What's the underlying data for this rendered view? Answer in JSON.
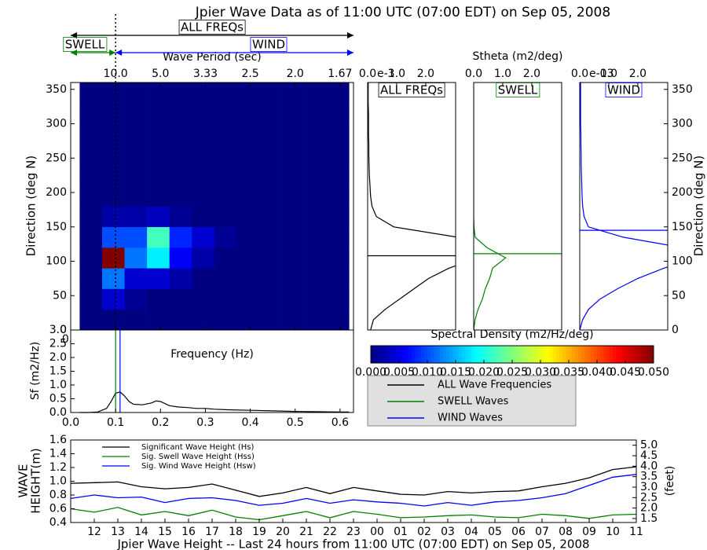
{
  "chart_data": [
    {
      "type": "heatmap",
      "title": "Jpier Wave Data as of 11:00 UTC (07:00 EDT) on Sep 05, 2008",
      "xlabel": "Frequency (Hz)",
      "ylabel": "Direction (deg N)",
      "top_xlabel": "Wave Period (sec)",
      "xlim": [
        0,
        0.63
      ],
      "xticks": [
        {
          "value": 0,
          "label": "0.0"
        },
        0.1,
        0.2,
        0.3,
        0.4,
        0.5,
        0.6
      ],
      "top_xticks": [
        {
          "value": 0.1,
          "label": "10.0"
        },
        {
          "value": 0.2,
          "label": "5.0"
        },
        {
          "value": 0.3,
          "label": "3.33"
        },
        {
          "value": 0.4,
          "label": "2.5"
        },
        {
          "value": 0.5,
          "label": "2.0"
        },
        {
          "value": 0.6,
          "label": "1.67"
        }
      ],
      "ylim": [
        0,
        360
      ],
      "yticks": [
        0,
        50,
        100,
        150,
        200,
        250,
        300,
        350
      ],
      "x_edges": [
        0.02,
        0.07,
        0.12,
        0.17,
        0.22,
        0.27,
        0.32,
        0.37,
        0.42,
        0.47,
        0.52,
        0.57,
        0.62
      ],
      "y_edges": [
        0,
        30,
        60,
        90,
        120,
        150,
        180,
        210,
        240,
        270,
        300,
        330,
        360
      ],
      "values": [
        [
          0,
          0,
          0,
          0,
          0,
          0,
          0,
          0,
          0,
          0,
          0,
          0
        ],
        [
          0,
          0.004,
          0.001,
          0,
          0,
          0,
          0,
          0,
          0,
          0,
          0,
          0
        ],
        [
          0,
          0.012,
          0.004,
          0.004,
          0.002,
          0,
          0,
          0,
          0,
          0,
          0,
          0
        ],
        [
          0,
          0.05,
          0.012,
          0.018,
          0.006,
          0.002,
          0,
          0,
          0,
          0,
          0,
          0
        ],
        [
          0,
          0.01,
          0.01,
          0.022,
          0.008,
          0.004,
          0.001,
          0,
          0,
          0,
          0,
          0
        ],
        [
          0,
          0.002,
          0.002,
          0.003,
          0.001,
          0,
          0,
          0,
          0,
          0,
          0,
          0
        ],
        [
          0,
          0,
          0,
          0,
          0,
          0,
          0,
          0,
          0,
          0,
          0,
          0
        ],
        [
          0,
          0,
          0,
          0,
          0,
          0,
          0,
          0,
          0,
          0,
          0,
          0
        ],
        [
          0,
          0,
          0,
          0,
          0,
          0,
          0,
          0,
          0,
          0,
          0,
          0
        ],
        [
          0,
          0,
          0,
          0,
          0,
          0,
          0,
          0,
          0,
          0,
          0,
          0
        ],
        [
          0,
          0,
          0,
          0,
          0,
          0,
          0,
          0,
          0,
          0,
          0,
          0
        ],
        [
          0,
          0,
          0,
          0,
          0,
          0,
          0,
          0,
          0,
          0,
          0,
          0
        ]
      ],
      "colorbar": {
        "label": "Spectral Density (m2/Hz/deg)",
        "lim": [
          0,
          0.05
        ],
        "ticks": [
          {
            "value": 0,
            "label": "0.000"
          },
          0.005,
          {
            "value": 0.01,
            "label": "0.010"
          },
          0.015,
          {
            "value": 0.02,
            "label": "0.020"
          },
          0.025,
          {
            "value": 0.03,
            "label": "0.030"
          },
          0.035,
          {
            "value": 0.04,
            "label": "0.040"
          },
          0.045,
          {
            "value": 0.05,
            "label": "0.050"
          }
        ]
      },
      "separation_frequency": 0.1,
      "annotations": [
        {
          "text": "ALL FREQs",
          "color": "#000000"
        },
        {
          "text": "SWELL",
          "color": "#008000"
        },
        {
          "text": "WIND",
          "color": "#0000ff"
        }
      ]
    },
    {
      "type": "profile",
      "title": "ALL FREQs",
      "color": "#000000",
      "xlim": [
        0,
        3.03
      ],
      "xticks": [
        {
          "value": 0,
          "label": "0.0"
        },
        {
          "value": 1,
          "label": "1.0"
        },
        {
          "value": 2,
          "label": "2.0"
        }
      ],
      "x_offset_label": "e-3",
      "ylim": [
        0,
        360
      ],
      "directions": [
        0,
        15,
        30,
        45,
        60,
        75,
        90,
        105,
        120,
        135,
        150,
        165,
        180,
        195,
        210,
        225,
        240,
        255,
        270,
        285,
        300,
        315,
        330,
        345,
        360
      ],
      "values": [
        0.1,
        0.2,
        0.6,
        1.1,
        1.6,
        2.1,
        2.8,
        3.8,
        3.5,
        3.1,
        0.9,
        0.3,
        0.15,
        0.1,
        0.08,
        0.06,
        0.05,
        0.04,
        0.04,
        0.03,
        0.03,
        0.03,
        0.02,
        0.02,
        0.02
      ],
      "mean_direction": 108
    },
    {
      "type": "profile",
      "title": "SWELL",
      "xlabel": "Stheta (m2/deg)",
      "color": "#008000",
      "xlim": [
        0,
        3.03
      ],
      "xticks": [
        {
          "value": 0,
          "label": "0.0"
        },
        {
          "value": 1,
          "label": "1.0"
        },
        {
          "value": 2,
          "label": "2.0"
        }
      ],
      "ylim": [
        0,
        360
      ],
      "directions": [
        0,
        15,
        30,
        45,
        60,
        75,
        90,
        105,
        120,
        135,
        150,
        165,
        180,
        195,
        210,
        225,
        240,
        255,
        270,
        285,
        300,
        315,
        330,
        345,
        360
      ],
      "values": [
        0,
        0.05,
        0.15,
        0.3,
        0.4,
        0.55,
        0.65,
        1.1,
        0.45,
        0.05,
        0.01,
        0,
        0,
        0,
        0,
        0,
        0,
        0,
        0,
        0,
        0,
        0,
        0,
        0,
        0
      ],
      "mean_direction": 111
    },
    {
      "type": "profile",
      "title": "WIND",
      "ylabel": "Direction (deg N)",
      "color": "#0000ff",
      "xlim": [
        0,
        3.03
      ],
      "xticks": [
        {
          "value": 0,
          "label": "0.0"
        },
        {
          "value": 1,
          "label": "1.0"
        },
        {
          "value": 2,
          "label": "2.0"
        }
      ],
      "x_offset_label": "e-03",
      "ylim": [
        0,
        360
      ],
      "yticks": [
        0,
        50,
        100,
        150,
        200,
        250,
        300,
        350
      ],
      "directions": [
        0,
        15,
        30,
        45,
        60,
        75,
        90,
        105,
        120,
        135,
        150,
        165,
        180,
        195,
        210,
        225,
        240,
        255,
        270,
        285,
        300,
        315,
        330,
        345,
        360
      ],
      "values": [
        0,
        0.1,
        0.3,
        0.7,
        1.3,
        2.0,
        2.9,
        4.0,
        3.5,
        1.5,
        0.3,
        0.15,
        0.1,
        0.08,
        0.07,
        0.06,
        0.05,
        0.05,
        0.04,
        0.04,
        0.03,
        0.03,
        0.03,
        0.03,
        0.03
      ],
      "mean_direction": 145
    },
    {
      "type": "line",
      "xlabel": "Frequency (Hz)",
      "ylabel": "Sf (m2/Hz)",
      "color": "#000000",
      "xlim": [
        0,
        0.63
      ],
      "xticks": [
        {
          "value": 0,
          "label": "0.0"
        },
        0.1,
        0.2,
        0.3,
        0.4,
        0.5,
        0.6
      ],
      "ylim": [
        0,
        3.0
      ],
      "yticks": [
        {
          "value": 0,
          "label": "0.0"
        },
        0.5,
        {
          "value": 1,
          "label": "1.0"
        },
        1.5,
        {
          "value": 2,
          "label": "2.0"
        },
        2.5,
        {
          "value": 3,
          "label": "3.0"
        }
      ],
      "x": [
        0.02,
        0.04,
        0.06,
        0.08,
        0.09,
        0.1,
        0.11,
        0.12,
        0.13,
        0.14,
        0.16,
        0.18,
        0.19,
        0.2,
        0.22,
        0.24,
        0.26,
        0.28,
        0.3,
        0.32,
        0.35,
        0.4,
        0.45,
        0.5,
        0.55,
        0.6,
        0.62
      ],
      "values": [
        0,
        0,
        0.02,
        0.15,
        0.4,
        0.7,
        0.75,
        0.6,
        0.4,
        0.3,
        0.28,
        0.35,
        0.42,
        0.4,
        0.25,
        0.2,
        0.18,
        0.15,
        0.15,
        0.12,
        0.1,
        0.08,
        0.06,
        0.04,
        0.03,
        0.02,
        0.02
      ],
      "peak_markers": [
        {
          "value": 0.1,
          "color": "#008000"
        },
        {
          "value": 0.11,
          "color": "#0000ff"
        }
      ],
      "legend": [
        {
          "name": "ALL Wave Frequencies",
          "color": "#000000"
        },
        {
          "name": "SWELL Waves",
          "color": "#008000"
        },
        {
          "name": "WIND Waves",
          "color": "#0000ff"
        }
      ]
    },
    {
      "type": "timeseries",
      "xlabel": "Jpier Wave Height -- Last 24 hours from 11:00 UTC (07:00 EDT) on Sep 05, 2008",
      "ylabel": [
        "WAVE",
        "HEIGHT(m)"
      ],
      "y2label": "(feet)",
      "categories": [
        null,
        "12",
        "13",
        "14",
        "15",
        "16",
        "17",
        "18",
        "19",
        "20",
        "21",
        "22",
        "23",
        "00",
        "01",
        "02",
        "03",
        "04",
        "05",
        "06",
        "07",
        "08",
        "09",
        "10",
        "11"
      ],
      "ylim": [
        0.4,
        1.6
      ],
      "yticks": [
        0.4,
        0.6,
        0.8,
        {
          "value": 1,
          "label": "1.0"
        },
        1.2,
        1.4,
        1.6
      ],
      "y2lim": [
        1.31,
        5.25
      ],
      "y2ticks": [
        1.5,
        {
          "value": 2,
          "label": "2.0"
        },
        2.5,
        {
          "value": 3,
          "label": "3.0"
        },
        3.5,
        {
          "value": 4,
          "label": "4.0"
        },
        4.5,
        {
          "value": 5,
          "label": "5.0"
        }
      ],
      "series": [
        {
          "name": "Significant Wave Height (Hs)",
          "color": "#000000",
          "values": [
            0.97,
            0.98,
            0.99,
            0.92,
            0.89,
            0.91,
            0.96,
            0.87,
            0.78,
            0.83,
            0.91,
            0.82,
            0.91,
            0.86,
            0.81,
            0.8,
            0.85,
            0.83,
            0.85,
            0.86,
            0.92,
            0.97,
            1.05,
            1.17,
            1.21
          ]
        },
        {
          "name": "Sig. Swell Wave Height (Hss)",
          "color": "#008000",
          "values": [
            0.6,
            0.55,
            0.62,
            0.51,
            0.56,
            0.5,
            0.58,
            0.48,
            0.44,
            0.5,
            0.56,
            0.47,
            0.56,
            0.52,
            0.47,
            0.48,
            0.5,
            0.51,
            0.48,
            0.47,
            0.52,
            0.5,
            0.46,
            0.51,
            0.52
          ]
        },
        {
          "name": "Sig. Wind Wave Height (Hsw)",
          "color": "#0000ff",
          "values": [
            0.75,
            0.8,
            0.76,
            0.77,
            0.69,
            0.75,
            0.76,
            0.72,
            0.65,
            0.68,
            0.75,
            0.68,
            0.73,
            0.7,
            0.68,
            0.64,
            0.69,
            0.65,
            0.7,
            0.72,
            0.76,
            0.82,
            0.94,
            1.06,
            1.1
          ]
        }
      ]
    }
  ]
}
